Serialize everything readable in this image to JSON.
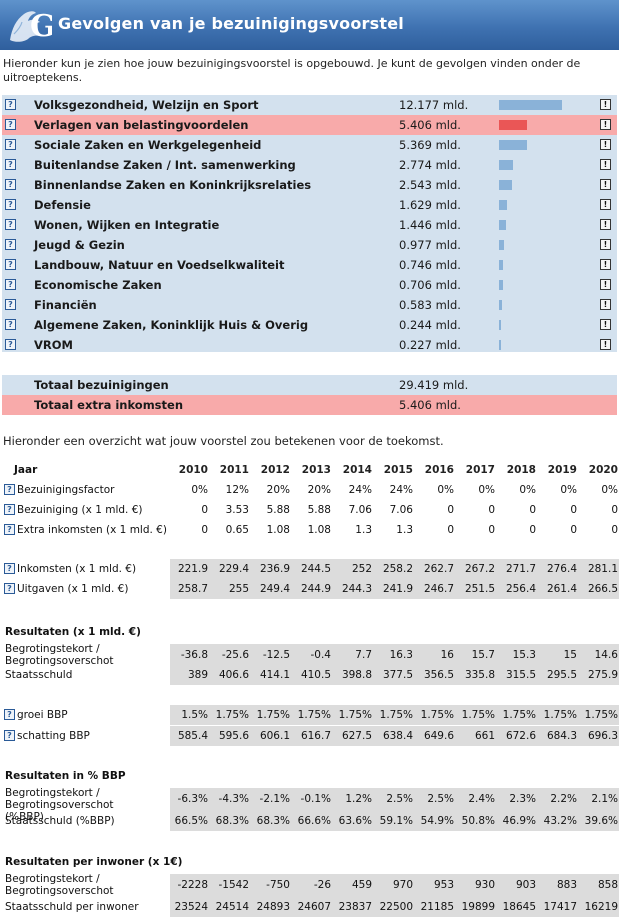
{
  "header": {
    "title": "Gevolgen van je bezuinigingsvoorstel",
    "logo": "G"
  },
  "intro": "Hieronder kun je zien hoe jouw bezuinigingsvoorstel is opgebouwd. Je kunt de gevolgen vinden onder de uitroeptekens.",
  "icons": {
    "help": "?",
    "info": "!"
  },
  "ministries": [
    {
      "name": "Volksgezondheid, Welzijn en Sport",
      "value": "12.177 mld.",
      "amount": 12.177,
      "highlight": false
    },
    {
      "name": "Verlagen van belastingvoordelen",
      "value": "5.406 mld.",
      "amount": 5.406,
      "highlight": true
    },
    {
      "name": "Sociale Zaken en Werkgelegenheid",
      "value": "5.369 mld.",
      "amount": 5.369,
      "highlight": false
    },
    {
      "name": "Buitenlandse Zaken / Int. samenwerking",
      "value": "2.774 mld.",
      "amount": 2.774,
      "highlight": false
    },
    {
      "name": "Binnenlandse Zaken en Koninkrijksrelaties",
      "value": "2.543 mld.",
      "amount": 2.543,
      "highlight": false
    },
    {
      "name": "Defensie",
      "value": "1.629 mld.",
      "amount": 1.629,
      "highlight": false
    },
    {
      "name": "Wonen, Wijken en Integratie",
      "value": "1.446 mld.",
      "amount": 1.446,
      "highlight": false
    },
    {
      "name": "Jeugd & Gezin",
      "value": "0.977 mld.",
      "amount": 0.977,
      "highlight": false
    },
    {
      "name": "Landbouw, Natuur en Voedselkwaliteit",
      "value": "0.746 mld.",
      "amount": 0.746,
      "highlight": false
    },
    {
      "name": "Economische Zaken",
      "value": "0.706 mld.",
      "amount": 0.706,
      "highlight": false
    },
    {
      "name": "Financiën",
      "value": "0.583 mld.",
      "amount": 0.583,
      "highlight": false
    },
    {
      "name": "Algemene Zaken, Koninklijk Huis & Overig",
      "value": "0.244 mld.",
      "amount": 0.244,
      "highlight": false
    },
    {
      "name": "VROM",
      "value": "0.227 mld.",
      "amount": 0.227,
      "highlight": false
    }
  ],
  "totals": [
    {
      "name": "Totaal bezuinigingen",
      "value": "29.419 mld.",
      "highlight": false
    },
    {
      "name": "Totaal extra inkomsten",
      "value": "5.406 mld.",
      "highlight": true
    }
  ],
  "outro": "Hieronder een overzicht wat jouw voorstel zou betekenen voor de toekomst.",
  "table": {
    "year_label": "Jaar",
    "years": [
      "2010",
      "2011",
      "2012",
      "2013",
      "2014",
      "2015",
      "2016",
      "2017",
      "2018",
      "2019",
      "2020"
    ],
    "sections": [
      {
        "title": "",
        "rows": [
          {
            "label": "Bezuinigingsfactor",
            "icon": true,
            "shaded": false,
            "values": [
              "0%",
              "12%",
              "20%",
              "20%",
              "24%",
              "24%",
              "0%",
              "0%",
              "0%",
              "0%",
              "0%"
            ]
          },
          {
            "label": "Bezuiniging (x 1 mld. €)",
            "icon": true,
            "shaded": false,
            "values": [
              "0",
              "3.53",
              "5.88",
              "5.88",
              "7.06",
              "7.06",
              "0",
              "0",
              "0",
              "0",
              "0"
            ]
          },
          {
            "label": "Extra inkomsten (x 1 mld. €)",
            "icon": true,
            "shaded": false,
            "values": [
              "0",
              "0.65",
              "1.08",
              "1.08",
              "1.3",
              "1.3",
              "0",
              "0",
              "0",
              "0",
              "0"
            ]
          }
        ]
      },
      {
        "title": "",
        "rows": [
          {
            "label": "Inkomsten (x 1 mld. €)",
            "icon": true,
            "shaded": true,
            "values": [
              "221.9",
              "229.4",
              "236.9",
              "244.5",
              "252",
              "258.2",
              "262.7",
              "267.2",
              "271.7",
              "276.4",
              "281.1"
            ]
          },
          {
            "label": "Uitgaven (x 1 mld. €)",
            "icon": true,
            "shaded": true,
            "values": [
              "258.7",
              "255",
              "249.4",
              "244.9",
              "244.3",
              "241.9",
              "246.7",
              "251.5",
              "256.4",
              "261.4",
              "266.5"
            ]
          }
        ]
      },
      {
        "title": "Resultaten (x 1 mld. €)",
        "rows": [
          {
            "label": "Begrotingstekort / Begrotingsoverschot",
            "icon": false,
            "shaded": true,
            "values": [
              "-36.8",
              "-25.6",
              "-12.5",
              "-0.4",
              "7.7",
              "16.3",
              "16",
              "15.7",
              "15.3",
              "15",
              "14.6"
            ]
          },
          {
            "label": "Staatsschuld",
            "icon": false,
            "shaded": true,
            "values": [
              "389",
              "406.6",
              "414.1",
              "410.5",
              "398.8",
              "377.5",
              "356.5",
              "335.8",
              "315.5",
              "295.5",
              "275.9"
            ]
          }
        ]
      },
      {
        "title": "",
        "rows": [
          {
            "label": "groei BBP",
            "icon": true,
            "shaded": true,
            "values": [
              "1.5%",
              "1.75%",
              "1.75%",
              "1.75%",
              "1.75%",
              "1.75%",
              "1.75%",
              "1.75%",
              "1.75%",
              "1.75%",
              "1.75%"
            ]
          },
          {
            "label": "schatting BBP",
            "icon": true,
            "shaded": true,
            "values": [
              "585.4",
              "595.6",
              "606.1",
              "616.7",
              "627.5",
              "638.4",
              "649.6",
              "661",
              "672.6",
              "684.3",
              "696.3"
            ]
          }
        ]
      },
      {
        "title": "Resultaten in % BBP",
        "rows": [
          {
            "label": "Begrotingstekort / Begrotingsoverschot (%BBP)",
            "icon": false,
            "shaded": true,
            "values": [
              "-6.3%",
              "-4.3%",
              "-2.1%",
              "-0.1%",
              "1.2%",
              "2.5%",
              "2.5%",
              "2.4%",
              "2.3%",
              "2.2%",
              "2.1%"
            ]
          },
          {
            "label": "Staatsschuld (%BBP)",
            "icon": false,
            "shaded": true,
            "values": [
              "66.5%",
              "68.3%",
              "68.3%",
              "66.6%",
              "63.6%",
              "59.1%",
              "54.9%",
              "50.8%",
              "46.9%",
              "43.2%",
              "39.6%"
            ]
          }
        ]
      },
      {
        "title": "Resultaten per inwoner (x 1€)",
        "rows": [
          {
            "label": "Begrotingstekort / Begrotingsoverschot",
            "icon": false,
            "shaded": true,
            "values": [
              "-2228",
              "-1542",
              "-750",
              "-26",
              "459",
              "970",
              "953",
              "930",
              "903",
              "883",
              "858"
            ]
          },
          {
            "label": "Staatsschuld per inwoner",
            "icon": false,
            "shaded": true,
            "values": [
              "23524",
              "24514",
              "24893",
              "24607",
              "23837",
              "22500",
              "21185",
              "19899",
              "18645",
              "17417",
              "16219"
            ]
          }
        ]
      }
    ]
  }
}
